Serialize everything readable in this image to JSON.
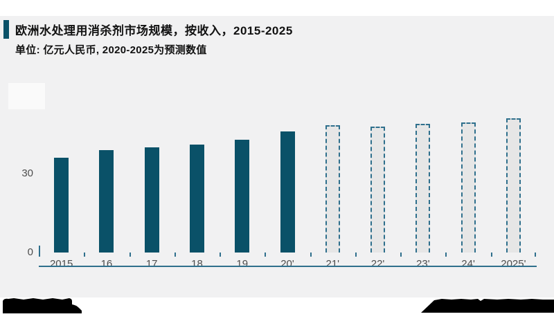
{
  "header": {
    "title": "欧洲水处理用消杀剂市场规模，按收入，2015-2025",
    "subtitle": "单位: 亿元人民币, 2020-2025为预测数值"
  },
  "chart_data": {
    "type": "bar",
    "title": "欧洲水处理用消杀剂市场规模，按收入，2015-2025",
    "subtitle": "单位: 亿元人民币, 2020-2025为预测数值",
    "categories": [
      "2015",
      "16",
      "17",
      "18",
      "19",
      "20'",
      "21'",
      "22'",
      "23'",
      "24'",
      "2025'"
    ],
    "values": [
      36,
      39,
      40,
      41,
      43,
      46,
      48.5,
      48,
      49,
      49.5,
      51
    ],
    "series_note": "2020-2025 are forecast values; bars 21' through 2025' drawn as dashed outlines",
    "forecast_dashed": [
      false,
      false,
      false,
      false,
      false,
      false,
      true,
      true,
      true,
      true,
      true
    ],
    "yticks": [
      0,
      30
    ],
    "ylim": [
      0,
      55
    ],
    "xlabel": "",
    "ylabel": "",
    "grid": false,
    "legend": "none",
    "bar_color": "#0a5168",
    "forecast_fill": "#e6e6e6",
    "axis_color": "#2e6f8c",
    "card_background": "#f1f1f2",
    "tick_label_color": "#4d4d4d"
  }
}
